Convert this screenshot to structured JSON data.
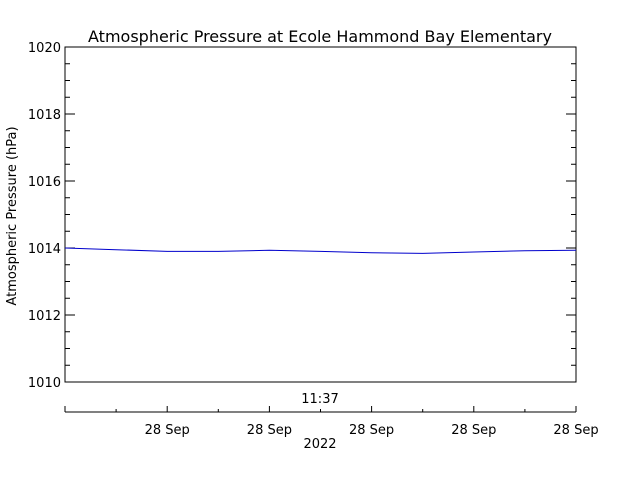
{
  "chart_data": {
    "type": "line",
    "title": "Atmospheric Pressure at Ecole Hammond Bay Elementary",
    "ylabel": "Atmospheric Pressure (hPa)",
    "ylim": [
      1010,
      1020
    ],
    "y_ticks": [
      "1010",
      "1012",
      "1014",
      "1016",
      "1018",
      "1020"
    ],
    "x_tick_labels": [
      "28 Sep",
      "28 Sep",
      "28 Sep",
      "28 Sep",
      "28 Sep"
    ],
    "x_time_label": "11:37",
    "x_year_label": "2022",
    "series": [
      {
        "color": "#0000cc",
        "x": [
          0,
          0.1,
          0.2,
          0.3,
          0.4,
          0.5,
          0.6,
          0.7,
          0.8,
          0.9,
          1.0
        ],
        "y": [
          1014.0,
          1013.95,
          1013.9,
          1013.9,
          1013.93,
          1013.9,
          1013.86,
          1013.84,
          1013.88,
          1013.92,
          1013.93
        ]
      }
    ],
    "grid": false
  }
}
